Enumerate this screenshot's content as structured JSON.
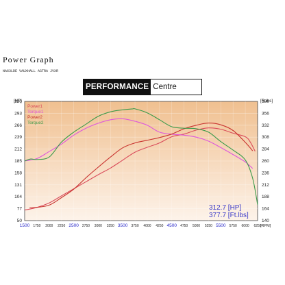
{
  "header": {
    "title": "Power Graph",
    "subtitle": "NA63LDE VAUXHALL ASTRA JVXR",
    "logo_dark": "PERFORMANCE",
    "logo_light": "Centre"
  },
  "readout": {
    "hp": "312.7 [HP]",
    "ft": "377.7 [Ft.lbs]"
  },
  "colors": {
    "power1": "#d94a5a",
    "torque1": "#dd55dd",
    "power2": "#c8322e",
    "torque2": "#3a9a4a",
    "bg_top": "#f0c090",
    "bg_bottom": "#fdf3ea",
    "axis_blue": "#2424c8",
    "readout": "#3a3ac8"
  },
  "chart_data": {
    "type": "line",
    "x_unit": "[RPM]",
    "left_unit": "[HP]",
    "right_unit": "[Ft.lbs]",
    "xlim": [
      1500,
      6250
    ],
    "ylim_left": [
      50,
      320
    ],
    "ylim_right": [
      140,
      380
    ],
    "x_ticks": [
      "1500",
      "1750",
      "2000",
      "2250",
      "2500",
      "2750",
      "3000",
      "3250",
      "3500",
      "3750",
      "4000",
      "4250",
      "4500",
      "4750",
      "5000",
      "5250",
      "5500",
      "5750",
      "6000",
      "6250"
    ],
    "left_ticks": [
      "320",
      "293",
      "266",
      "239",
      "212",
      "185",
      "158",
      "131",
      "104",
      "77",
      "50"
    ],
    "right_ticks": [
      "380",
      "356",
      "332",
      "308",
      "284",
      "260",
      "236",
      "212",
      "188",
      "164",
      "140"
    ],
    "legend": [
      "Power1",
      "Torque1",
      "Power2",
      "Torque2"
    ],
    "series": [
      {
        "name": "Power1",
        "axis": "left",
        "x": [
          1500,
          1600,
          1750,
          2000,
          2250,
          2500,
          2750,
          3000,
          3250,
          3500,
          3750,
          4000,
          4250,
          4500,
          4750,
          5000,
          5250,
          5500,
          5750,
          6000,
          6100,
          6200
        ],
        "y": [
          74,
          76,
          80,
          90,
          106,
          122,
          138,
          154,
          169,
          187,
          205,
          216,
          226,
          240,
          246,
          255,
          260,
          257,
          248,
          240,
          228,
          207
        ]
      },
      {
        "name": "Torque1",
        "axis": "right",
        "x": [
          1500,
          1750,
          2000,
          2250,
          2500,
          2750,
          3000,
          3250,
          3500,
          3750,
          4000,
          4250,
          4500,
          4750,
          5000,
          5250,
          5500,
          5750,
          6000,
          6150
        ],
        "y": [
          260,
          265,
          279,
          294,
          312,
          326,
          336,
          343,
          345,
          340,
          332,
          318,
          314,
          312,
          308,
          300,
          287,
          273,
          258,
          245
        ]
      },
      {
        "name": "Power2",
        "axis": "left",
        "x": [
          1600,
          1750,
          2000,
          2250,
          2500,
          2750,
          3000,
          3250,
          3500,
          3750,
          4000,
          4250,
          4500,
          4750,
          5000,
          5250,
          5500,
          5750,
          6000,
          6150
        ],
        "y": [
          79,
          80,
          85,
          102,
          121,
          147,
          171,
          194,
          215,
          226,
          232,
          238,
          246,
          258,
          266,
          271,
          267,
          254,
          227,
          208
        ]
      },
      {
        "name": "Torque2",
        "axis": "right",
        "x": [
          1500,
          1625,
          1750,
          2000,
          2250,
          2500,
          2750,
          3000,
          3250,
          3500,
          3700,
          3750,
          4000,
          4250,
          4500,
          4750,
          5000,
          5250,
          5500,
          5750,
          6000,
          6150,
          6250
        ],
        "y": [
          260,
          264,
          263,
          268,
          298,
          318,
          334,
          350,
          359,
          363,
          365,
          365,
          357,
          343,
          329,
          326,
          325,
          318,
          299,
          282,
          262,
          225,
          172
        ]
      }
    ]
  }
}
